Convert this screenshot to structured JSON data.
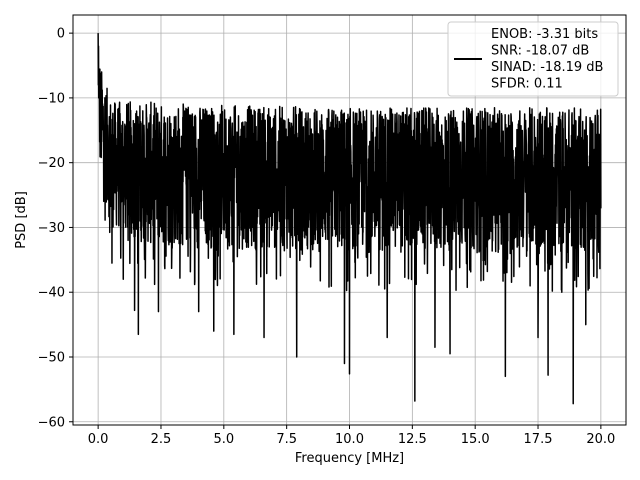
{
  "chart_data": {
    "type": "line",
    "title": "",
    "xlabel": "Frequency [MHz]",
    "ylabel": "PSD [dB]",
    "xlim": [
      -1.0,
      21.0
    ],
    "ylim": [
      -60.5,
      2.8
    ],
    "xticks": [
      0.0,
      2.5,
      5.0,
      7.5,
      10.0,
      12.5,
      15.0,
      17.5,
      20.0
    ],
    "xtick_labels": [
      "0.0",
      "2.5",
      "5.0",
      "7.5",
      "10.0",
      "12.5",
      "15.0",
      "17.5",
      "20.0"
    ],
    "yticks": [
      0,
      -10,
      -20,
      -30,
      -40,
      -50,
      -60
    ],
    "ytick_labels": [
      "0",
      "−10",
      "−20",
      "−30",
      "−40",
      "−50",
      "−60"
    ],
    "grid": true,
    "legend_placement": "upper right",
    "line_color": "#000000",
    "series": [
      {
        "description": "noisy PSD, peak at 0 MHz, band roughly -10 to -30 dB with deep nulls",
        "x_range": [
          0.0,
          20.0
        ],
        "peak_value": 0.0,
        "upper_envelope": [
          [
            0.0,
            0.0
          ],
          [
            0.1,
            -5
          ],
          [
            0.3,
            -8
          ],
          [
            0.6,
            -10.5
          ],
          [
            1.5,
            -10.5
          ],
          [
            4,
            -11
          ],
          [
            10,
            -11.5
          ],
          [
            15,
            -11.5
          ],
          [
            20,
            -11.5
          ]
        ],
        "lower_envelope": [
          [
            0.0,
            -20
          ],
          [
            0.5,
            -30
          ],
          [
            2,
            -33
          ],
          [
            10,
            -34
          ],
          [
            20,
            -34
          ]
        ],
        "deep_nulls": [
          [
            0.55,
            -35.5
          ],
          [
            1.0,
            -38
          ],
          [
            1.45,
            -42.8
          ],
          [
            1.6,
            -46.5
          ],
          [
            2.4,
            -43
          ],
          [
            4.0,
            -43
          ],
          [
            4.6,
            -46
          ],
          [
            5.4,
            -46.5
          ],
          [
            6.6,
            -47
          ],
          [
            7.9,
            -50
          ],
          [
            9.8,
            -51
          ],
          [
            10.0,
            -52.6
          ],
          [
            11.5,
            -47
          ],
          [
            12.6,
            -56.8
          ],
          [
            13.4,
            -48.5
          ],
          [
            14.0,
            -49.5
          ],
          [
            16.2,
            -53
          ],
          [
            17.5,
            -47
          ],
          [
            17.9,
            -52.8
          ],
          [
            18.9,
            -57.2
          ],
          [
            19.4,
            -45
          ]
        ]
      }
    ],
    "legend": {
      "lines": [
        "ENOB: -3.31 bits",
        "SNR: -18.07 dB",
        "SINAD: -18.19 dB",
        "SFDR: 0.11"
      ]
    }
  }
}
